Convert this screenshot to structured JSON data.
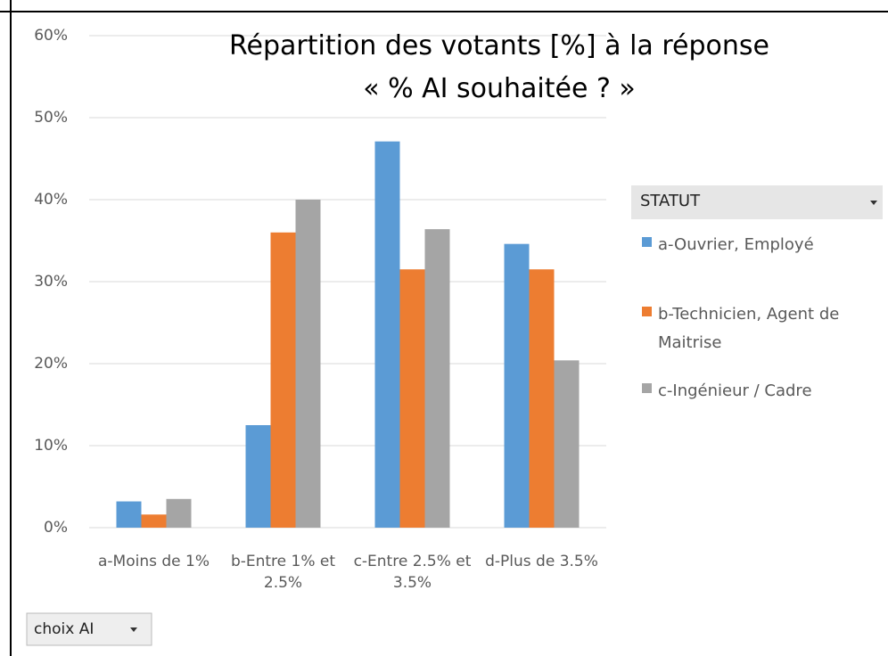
{
  "chart_data": {
    "type": "bar",
    "title": "Répartition des votants [%] à la réponse « % AI souhaitée ? »",
    "categories": [
      "a-Moins de 1%",
      "b-Entre 1% et 2.5%",
      "c-Entre 2.5% et 3.5%",
      "d-Plus de 3.5%"
    ],
    "series": [
      {
        "name": "a-Ouvrier, Employé",
        "color": "#5b9bd5",
        "values": [
          3.2,
          12.5,
          47.1,
          34.6
        ]
      },
      {
        "name": "b-Technicien, Agent de Maitrise",
        "color": "#ed7d31",
        "values": [
          1.6,
          36.0,
          31.5,
          31.5
        ]
      },
      {
        "name": "c-Ingénieur / Cadre",
        "color": "#a5a5a5",
        "values": [
          3.5,
          40.0,
          36.4,
          20.4
        ]
      }
    ],
    "ylim": [
      0,
      60
    ],
    "yticks": [
      {
        "value": 0,
        "label": "0%"
      },
      {
        "value": 10,
        "label": "10%"
      },
      {
        "value": 20,
        "label": "20%"
      },
      {
        "value": 30,
        "label": "30%"
      },
      {
        "value": 40,
        "label": "40%"
      },
      {
        "value": 50,
        "label": "50%"
      },
      {
        "value": 60,
        "label": "60%"
      }
    ],
    "grid": true,
    "legend_title": "STATUT",
    "legend_position": "right",
    "filter_button": "choix AI"
  }
}
